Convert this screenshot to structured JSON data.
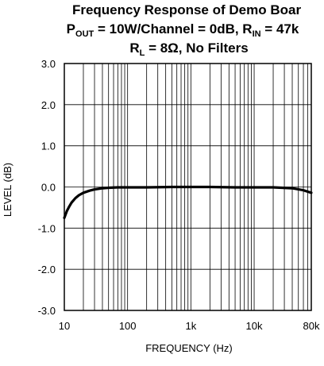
{
  "chart_data": {
    "type": "line",
    "title": {
      "line1": "Frequency Response of Demo Boar",
      "line2": {
        "p": "P",
        "p_sub": "OUT",
        "mid": " = 10W/Channel = 0dB, R",
        "r_sub": "IN",
        "end": " = 47k"
      },
      "line3": {
        "r": "R",
        "r_sub": "L",
        "end": " = 8Ω, No Filters"
      }
    },
    "xlabel": "FREQUENCY (Hz)",
    "ylabel": "LEVEL (dB)",
    "x_scale": "log",
    "xlim": [
      10,
      80000
    ],
    "ylim": [
      -3.0,
      3.0
    ],
    "grid": true,
    "x_ticks": [
      {
        "value": 10,
        "label": "10"
      },
      {
        "value": 100,
        "label": "100"
      },
      {
        "value": 1000,
        "label": "1k"
      },
      {
        "value": 10000,
        "label": "10k"
      },
      {
        "value": 80000,
        "label": "80k"
      }
    ],
    "y_ticks": [
      {
        "value": 3.0,
        "label": "3.0"
      },
      {
        "value": 2.0,
        "label": "2.0"
      },
      {
        "value": 1.0,
        "label": "1.0"
      },
      {
        "value": 0.0,
        "label": "0.0"
      },
      {
        "value": -1.0,
        "label": "-1.0"
      },
      {
        "value": -2.0,
        "label": "-2.0"
      },
      {
        "value": -3.0,
        "label": "-3.0"
      }
    ],
    "series": [
      {
        "color": "#000000",
        "x": [
          10,
          11,
          12,
          13,
          15,
          17,
          20,
          25,
          30,
          40,
          50,
          70,
          100,
          200,
          500,
          1000,
          2000,
          5000,
          10000,
          20000,
          40000,
          60000,
          80000
        ],
        "y": [
          -0.75,
          -0.58,
          -0.47,
          -0.38,
          -0.27,
          -0.2,
          -0.14,
          -0.09,
          -0.06,
          -0.03,
          -0.02,
          -0.01,
          -0.01,
          -0.01,
          0.0,
          0.0,
          0.0,
          -0.01,
          -0.01,
          -0.01,
          -0.03,
          -0.08,
          -0.14
        ]
      }
    ]
  }
}
